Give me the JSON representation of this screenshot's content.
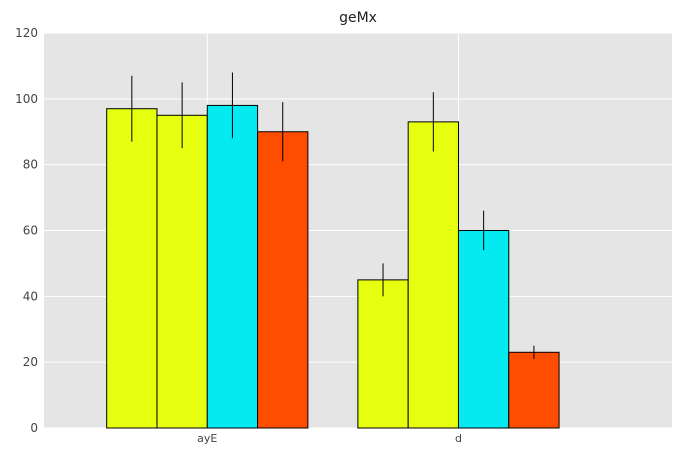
{
  "chart_data": {
    "type": "bar",
    "title": "geMx",
    "xlabel": "",
    "ylabel": "",
    "categories": [
      "ayE",
      "d"
    ],
    "ylim": [
      0,
      120
    ],
    "yticks": [
      0,
      20,
      40,
      60,
      80,
      100,
      120
    ],
    "grid": true,
    "series": [
      {
        "values": [
          97,
          45
        ],
        "errors": [
          10,
          5
        ],
        "color": "#e6ff0f"
      },
      {
        "values": [
          95,
          93
        ],
        "errors": [
          10,
          9
        ],
        "color": "#e6ff0f"
      },
      {
        "values": [
          98,
          60
        ],
        "errors": [
          10,
          6
        ],
        "color": "#05eaf0"
      },
      {
        "values": [
          90,
          23
        ],
        "errors": [
          9,
          2
        ],
        "color": "#ff4d00"
      }
    ]
  }
}
